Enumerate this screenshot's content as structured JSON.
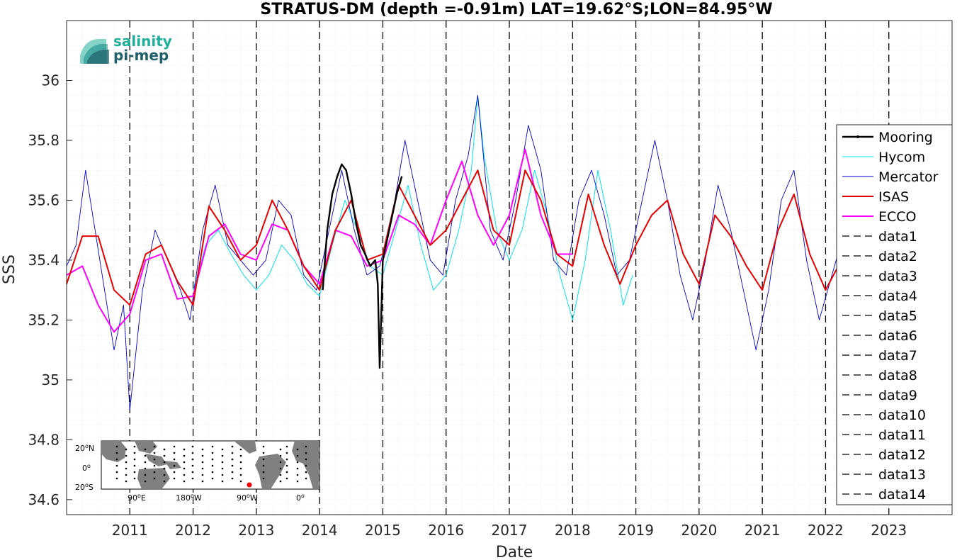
{
  "logo": {
    "line1": "salinity",
    "line2": "pi-mep"
  },
  "colors": {
    "Mooring": "#000000",
    "Hycom": "#00e5ee",
    "Mercator": "#0000cc",
    "ISAS": "#e60000",
    "ECCO": "#ff00ff",
    "grid": "#d9d9d9",
    "land": "#808080"
  },
  "chart_data": {
    "type": "line",
    "title": "STRATUS-DM (depth =-0.91m) LAT=19.62°S;LON=84.95°W",
    "xlabel": "Date",
    "ylabel": "SSS",
    "xlim": [
      2010.0,
      2024.0
    ],
    "ylim": [
      34.55,
      36.2
    ],
    "x_ticks": [
      2011,
      2012,
      2013,
      2014,
      2015,
      2016,
      2017,
      2018,
      2019,
      2020,
      2021,
      2022,
      2023
    ],
    "y_ticks": [
      34.6,
      34.8,
      35,
      35.2,
      35.4,
      35.6,
      35.8,
      36
    ],
    "y_tick_labels": [
      "34.6",
      "34.8",
      "35",
      "35.2",
      "35.4",
      "35.6",
      "35.8",
      "36"
    ],
    "grid": true,
    "legend_position": "right",
    "vertical_dashed_lines": [
      2011,
      2012,
      2013,
      2014,
      2015,
      2016,
      2017,
      2018,
      2019,
      2020,
      2021,
      2022,
      2023
    ],
    "series": [
      {
        "name": "Mooring",
        "x": [
          2014.05,
          2014.12,
          2014.2,
          2014.28,
          2014.35,
          2014.42,
          2014.5,
          2014.58,
          2014.65,
          2014.72,
          2014.8,
          2014.88,
          2014.92,
          2014.95,
          2015.0,
          2015.08,
          2015.15,
          2015.22,
          2015.3
        ],
        "y": [
          35.3,
          35.5,
          35.62,
          35.68,
          35.72,
          35.7,
          35.62,
          35.52,
          35.45,
          35.42,
          35.38,
          35.4,
          35.32,
          35.04,
          35.4,
          35.48,
          35.55,
          35.62,
          35.68
        ]
      },
      {
        "name": "Hycom",
        "x": [
          2012.0,
          2012.2,
          2012.4,
          2012.6,
          2012.8,
          2013.0,
          2013.2,
          2013.4,
          2013.6,
          2013.8,
          2014.0,
          2014.2,
          2014.4,
          2014.6,
          2014.8,
          2015.0,
          2015.2,
          2015.4,
          2015.6,
          2015.8,
          2016.0,
          2016.2,
          2016.4,
          2016.5,
          2016.6,
          2016.8,
          2017.0,
          2017.2,
          2017.4,
          2017.6,
          2017.8,
          2018.0,
          2018.2,
          2018.4,
          2018.6,
          2018.8,
          2018.95
        ],
        "y": [
          35.3,
          35.45,
          35.5,
          35.42,
          35.35,
          35.3,
          35.35,
          35.45,
          35.4,
          35.32,
          35.28,
          35.45,
          35.6,
          35.5,
          35.38,
          35.35,
          35.5,
          35.65,
          35.45,
          35.3,
          35.35,
          35.5,
          35.7,
          35.95,
          35.75,
          35.5,
          35.4,
          35.5,
          35.7,
          35.55,
          35.35,
          35.2,
          35.4,
          35.7,
          35.5,
          35.25,
          35.35
        ]
      },
      {
        "name": "Mercator",
        "x": [
          2010.0,
          2010.15,
          2010.3,
          2010.45,
          2010.6,
          2010.75,
          2010.9,
          2011.0,
          2011.2,
          2011.4,
          2011.6,
          2011.8,
          2011.95,
          2012.15,
          2012.35,
          2012.55,
          2012.75,
          2012.95,
          2013.15,
          2013.35,
          2013.55,
          2013.75,
          2013.95,
          2014.15,
          2014.35,
          2014.55,
          2014.75,
          2014.95,
          2015.15,
          2015.35,
          2015.55,
          2015.75,
          2015.95,
          2016.15,
          2016.35,
          2016.5,
          2016.7,
          2016.9,
          2017.1,
          2017.3,
          2017.5,
          2017.7,
          2017.9,
          2018.1,
          2018.3,
          2018.5,
          2018.7,
          2018.9,
          2019.1,
          2019.3,
          2019.5,
          2019.7,
          2019.9,
          2020.1,
          2020.3,
          2020.5,
          2020.7,
          2020.9,
          2021.1,
          2021.3,
          2021.5,
          2021.7,
          2021.9,
          2022.1,
          2022.3,
          2022.45
        ],
        "y": [
          35.38,
          35.45,
          35.7,
          35.5,
          35.3,
          35.1,
          35.25,
          34.9,
          35.3,
          35.5,
          35.4,
          35.3,
          35.2,
          35.5,
          35.65,
          35.45,
          35.4,
          35.35,
          35.4,
          35.6,
          35.55,
          35.35,
          35.3,
          35.5,
          35.7,
          35.5,
          35.35,
          35.38,
          35.55,
          35.8,
          35.6,
          35.4,
          35.35,
          35.6,
          35.75,
          35.95,
          35.5,
          35.4,
          35.6,
          35.85,
          35.7,
          35.4,
          35.35,
          35.6,
          35.7,
          35.55,
          35.35,
          35.4,
          35.6,
          35.8,
          35.6,
          35.35,
          35.2,
          35.4,
          35.65,
          35.5,
          35.3,
          35.1,
          35.3,
          35.6,
          35.7,
          35.4,
          35.2,
          35.35,
          35.5,
          35.5
        ]
      },
      {
        "name": "ISAS",
        "x": [
          2010.0,
          2010.25,
          2010.5,
          2010.75,
          2011.0,
          2011.25,
          2011.5,
          2011.75,
          2012.0,
          2012.25,
          2012.5,
          2012.75,
          2013.0,
          2013.25,
          2013.5,
          2013.75,
          2014.0,
          2014.25,
          2014.5,
          2014.75,
          2015.0,
          2015.25,
          2015.5,
          2015.75,
          2016.0,
          2016.25,
          2016.5,
          2016.75,
          2017.0,
          2017.25,
          2017.5,
          2017.75,
          2018.0,
          2018.25,
          2018.5,
          2018.75,
          2019.0,
          2019.25,
          2019.5,
          2019.75,
          2020.0,
          2020.25,
          2020.5,
          2020.75,
          2021.0,
          2021.25,
          2021.5,
          2021.75,
          2022.0,
          2022.25,
          2022.4
        ],
        "y": [
          35.32,
          35.48,
          35.48,
          35.3,
          35.25,
          35.42,
          35.45,
          35.33,
          35.25,
          35.58,
          35.5,
          35.4,
          35.45,
          35.6,
          35.5,
          35.38,
          35.3,
          35.5,
          35.6,
          35.4,
          35.42,
          35.65,
          35.55,
          35.45,
          35.5,
          35.6,
          35.7,
          35.5,
          35.45,
          35.7,
          35.6,
          35.42,
          35.38,
          35.62,
          35.45,
          35.32,
          35.45,
          35.55,
          35.6,
          35.42,
          35.32,
          35.55,
          35.48,
          35.38,
          35.3,
          35.5,
          35.62,
          35.42,
          35.3,
          35.4,
          35.35
        ]
      },
      {
        "name": "ECCO",
        "x": [
          2010.0,
          2010.25,
          2010.5,
          2010.75,
          2011.0,
          2011.25,
          2011.5,
          2011.75,
          2012.0,
          2012.25,
          2012.5,
          2012.75,
          2013.0,
          2013.25,
          2013.5,
          2013.75,
          2014.0,
          2014.25,
          2014.5,
          2014.75,
          2015.0,
          2015.25,
          2015.5,
          2015.75,
          2016.0,
          2016.25,
          2016.5,
          2016.75,
          2017.0,
          2017.25,
          2017.5,
          2017.75,
          2018.0
        ],
        "y": [
          35.35,
          35.38,
          35.25,
          35.16,
          35.22,
          35.4,
          35.42,
          35.27,
          35.28,
          35.48,
          35.52,
          35.42,
          35.4,
          35.52,
          35.5,
          35.38,
          35.32,
          35.5,
          35.48,
          35.38,
          35.4,
          35.55,
          35.52,
          35.45,
          35.6,
          35.73,
          35.55,
          35.45,
          35.55,
          35.77,
          35.55,
          35.42,
          35.42
        ]
      }
    ],
    "legend_extra": [
      "data1",
      "data2",
      "data3",
      "data4",
      "data5",
      "data6",
      "data7",
      "data8",
      "data9",
      "data10",
      "data11",
      "data12",
      "data13",
      "data14"
    ]
  },
  "inset_map": {
    "lat_labels": [
      "20",
      "0",
      "20"
    ],
    "lat_suffix": [
      "N",
      "",
      "S"
    ],
    "lon_labels": [
      "90",
      "180",
      "90",
      "0"
    ],
    "lon_suffix": [
      "E",
      "W",
      "W",
      ""
    ],
    "degree_mark": "o",
    "marker_color": "#ff0000"
  }
}
